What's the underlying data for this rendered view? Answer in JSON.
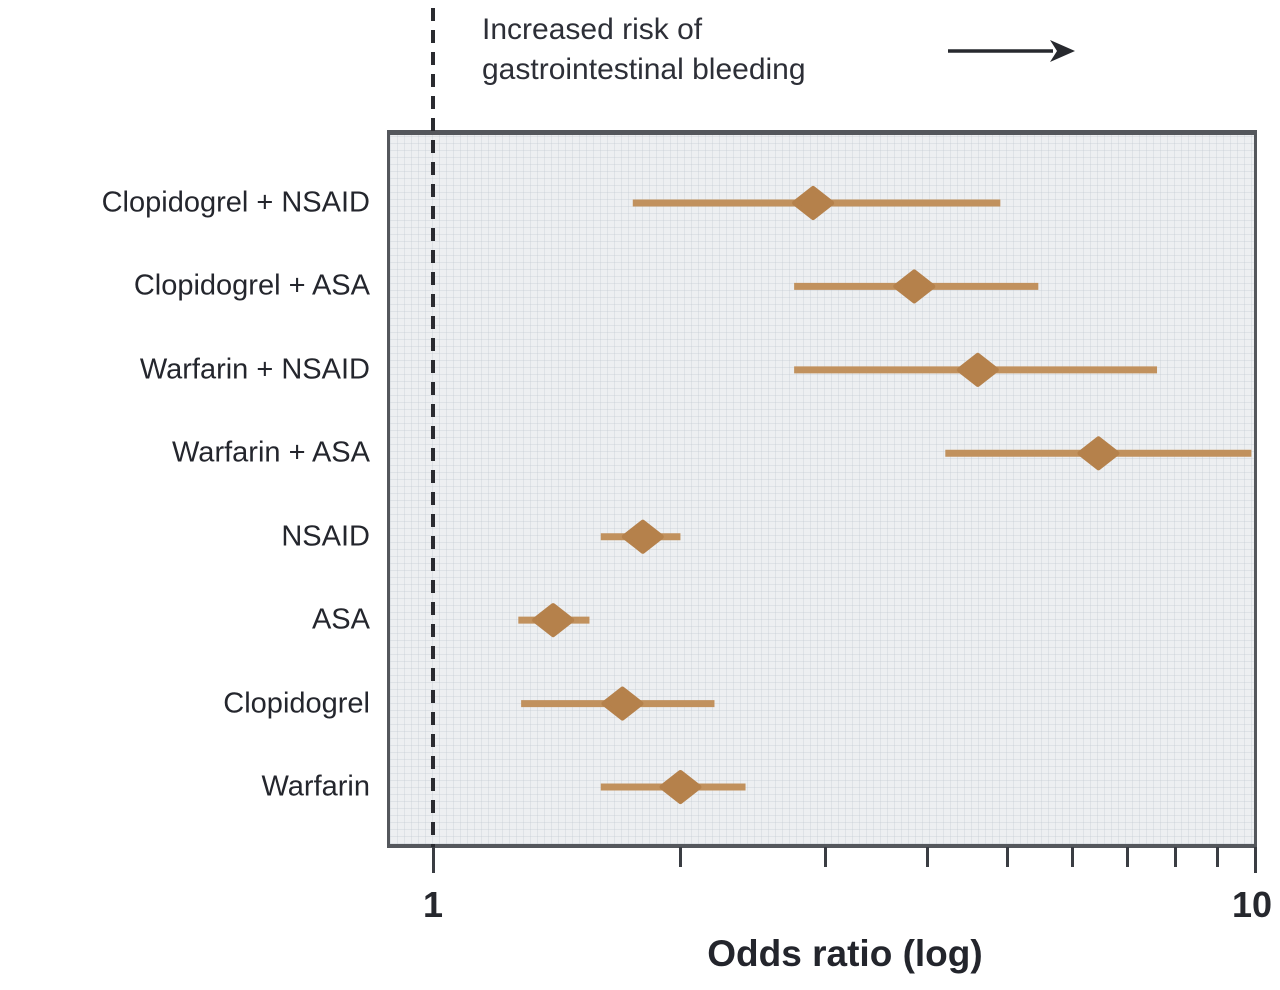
{
  "chart_data": {
    "type": "scatter",
    "variant": "forest-plot (odds ratios with 95% confidence intervals, horizontal rows, diamond markers)",
    "title": "",
    "xlabel": "Odds ratio (log)",
    "ylabel": "",
    "x_scale": "log10",
    "xlim": [
      1,
      10
    ],
    "x_ticks": [
      1,
      2,
      3,
      4,
      5,
      6,
      7,
      8,
      9,
      10
    ],
    "x_tick_labels": {
      "1": "1",
      "10": "10"
    },
    "reference_line_x": 1,
    "grid": "faint light-gray mesh texture on plot background",
    "legend": null,
    "annotation": {
      "line1": "Increased risk of",
      "line2": "gastrointestinal bleeding",
      "arrow": "right-arrow"
    },
    "rows": [
      {
        "label": "Clopidogrel + NSAID",
        "or": 2.9,
        "ci_low": 1.75,
        "ci_high": 4.9
      },
      {
        "label": "Clopidogrel + ASA",
        "or": 3.85,
        "ci_low": 2.75,
        "ci_high": 5.45
      },
      {
        "label": "Warfarin + NSAID",
        "or": 4.6,
        "ci_low": 2.75,
        "ci_high": 7.6
      },
      {
        "label": "Warfarin + ASA",
        "or": 6.45,
        "ci_low": 4.2,
        "ci_high": 9.9
      },
      {
        "label": "NSAID",
        "or": 1.8,
        "ci_low": 1.6,
        "ci_high": 2.0
      },
      {
        "label": "ASA",
        "or": 1.4,
        "ci_low": 1.27,
        "ci_high": 1.55
      },
      {
        "label": "Clopidogrel",
        "or": 1.7,
        "ci_low": 1.28,
        "ci_high": 2.2
      },
      {
        "label": "Warfarin",
        "or": 2.0,
        "ci_low": 1.6,
        "ci_high": 2.4
      }
    ]
  },
  "colors": {
    "marker": "#b5814b",
    "ci_line": "#c1915d",
    "plot_background": "#edeff1",
    "frame": "#54575c",
    "reference_line": "#2a2b30",
    "text": "#26282e",
    "arrow": "#27292e"
  }
}
